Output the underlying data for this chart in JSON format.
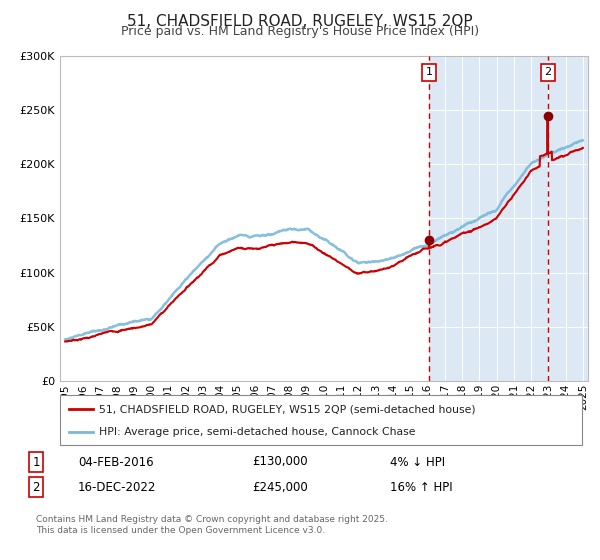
{
  "title": "51, CHADSFIELD ROAD, RUGELEY, WS15 2QP",
  "subtitle": "Price paid vs. HM Land Registry's House Price Index (HPI)",
  "title_fontsize": 11,
  "subtitle_fontsize": 9,
  "bg_color": "#ffffff",
  "plot_bg_color": "#dce9f5",
  "grid_color": "#ffffff",
  "hpi_color": "#7ab8d9",
  "price_color": "#cc0000",
  "marker_color": "#8b0000",
  "vline_color": "#cc0000",
  "highlight_bg": "#dce9f5",
  "xmin_year": 1995,
  "xmax_year": 2025,
  "ymin": 0,
  "ymax": 300000,
  "yticks": [
    0,
    50000,
    100000,
    150000,
    200000,
    250000,
    300000
  ],
  "xticks": [
    1995,
    1996,
    1997,
    1998,
    1999,
    2000,
    2001,
    2002,
    2003,
    2004,
    2005,
    2006,
    2007,
    2008,
    2009,
    2010,
    2011,
    2012,
    2013,
    2014,
    2015,
    2016,
    2017,
    2018,
    2019,
    2020,
    2021,
    2022,
    2023,
    2024,
    2025
  ],
  "sale1_x": 2016.09,
  "sale1_y": 130000,
  "sale1_label": "1",
  "sale1_date": "04-FEB-2016",
  "sale1_price": "£130,000",
  "sale1_hpi": "4% ↓ HPI",
  "sale2_x": 2022.96,
  "sale2_y": 245000,
  "sale2_label": "2",
  "sale2_date": "16-DEC-2022",
  "sale2_price": "£245,000",
  "sale2_hpi": "16% ↑ HPI",
  "legend_line1": "51, CHADSFIELD ROAD, RUGELEY, WS15 2QP (semi-detached house)",
  "legend_line2": "HPI: Average price, semi-detached house, Cannock Chase",
  "footer": "Contains HM Land Registry data © Crown copyright and database right 2025.\nThis data is licensed under the Open Government Licence v3.0.",
  "highlight_start": 2016.09,
  "highlight_end": 2025.3
}
